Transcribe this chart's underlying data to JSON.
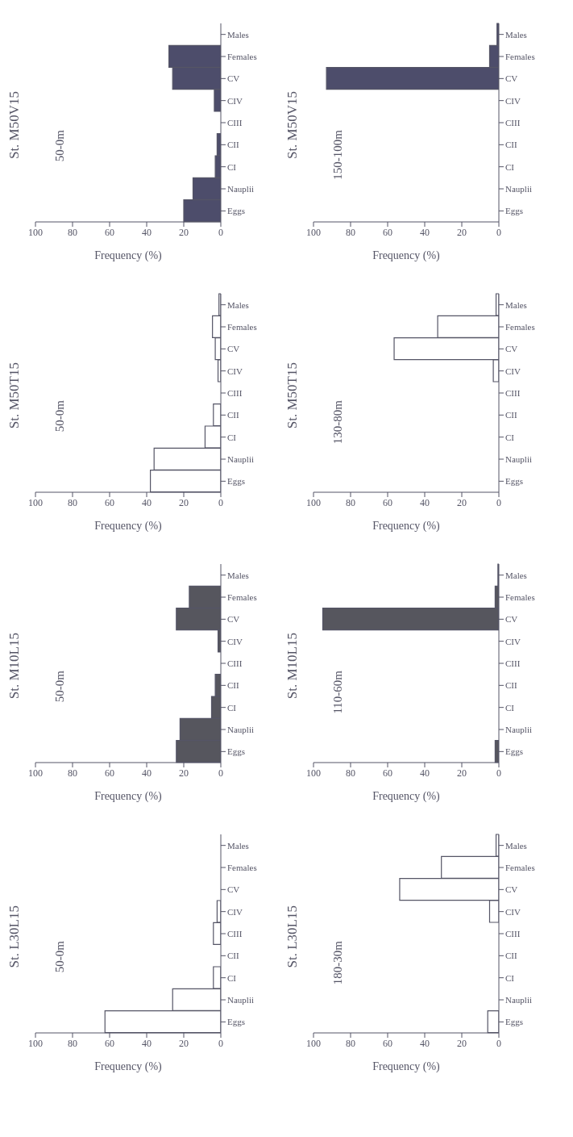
{
  "chart_data": [
    {
      "type": "bar",
      "orientation": "horizontal",
      "title": "St. M50V15",
      "annotations": [
        "50-0m"
      ],
      "xlabel": "Frequency (%)",
      "categories": [
        "Males",
        "Females",
        "CV",
        "CIV",
        "CIII",
        "CII",
        "CI",
        "Nauplii",
        "Eggs"
      ],
      "values": [
        0,
        28,
        26,
        3.5,
        0,
        2,
        3,
        15,
        20
      ],
      "color": "#4d4d6b",
      "xlim": [
        100,
        0
      ],
      "xticks": [
        100,
        80,
        60,
        40,
        20,
        0
      ],
      "grid": false
    },
    {
      "type": "bar",
      "orientation": "horizontal",
      "title": "St. M50V15",
      "annotations": [
        "150-100m"
      ],
      "xlabel": "Frequency (%)",
      "categories": [
        "Males",
        "Females",
        "CV",
        "CIV",
        "CIII",
        "CII",
        "CI",
        "Nauplii",
        "Eggs"
      ],
      "values": [
        1,
        5,
        93,
        0,
        0,
        0,
        0,
        0,
        0
      ],
      "color": "#4d4d6b",
      "xlim": [
        100,
        0
      ],
      "xticks": [
        100,
        80,
        60,
        40,
        20,
        0
      ],
      "grid": false
    },
    {
      "type": "bar",
      "orientation": "horizontal",
      "title": "St. M50T15",
      "annotations": [
        "50-0m"
      ],
      "xlabel": "Frequency (%)",
      "categories": [
        "Males",
        "Females",
        "CV",
        "CIV",
        "CIII",
        "CII",
        "CI",
        "Nauplii",
        "Eggs"
      ],
      "values": [
        1,
        4.5,
        3,
        1.5,
        null,
        4,
        8.5,
        36,
        38
      ],
      "color": "#ffffff",
      "xlim": [
        100,
        0
      ],
      "xticks": [
        100,
        80,
        60,
        40,
        20,
        0
      ],
      "grid": false
    },
    {
      "type": "bar",
      "orientation": "horizontal",
      "title": "St. M50T15",
      "annotations": [
        "130-80m"
      ],
      "xlabel": "Frequency (%)",
      "categories": [
        "Males",
        "Females",
        "CV",
        "CIV",
        "CIII",
        "CII",
        "CI",
        "Nauplii",
        "Eggs"
      ],
      "values": [
        1.5,
        33,
        56.5,
        3,
        0,
        0,
        0,
        0,
        0
      ],
      "color": "#ffffff",
      "xlim": [
        100,
        0
      ],
      "xticks": [
        100,
        80,
        60,
        40,
        20,
        0
      ],
      "grid": false
    },
    {
      "type": "bar",
      "orientation": "horizontal",
      "title": "St. M10L15",
      "annotations": [
        "50-0m"
      ],
      "xlabel": "Frequency (%)",
      "categories": [
        "Males",
        "Females",
        "CV",
        "CIV",
        "CIII",
        "CII",
        "CI",
        "Nauplii",
        "Eggs"
      ],
      "values": [
        0,
        17,
        24,
        1.5,
        0,
        3,
        5,
        22,
        24
      ],
      "color": "#56565e",
      "xlim": [
        100,
        0
      ],
      "xticks": [
        100,
        80,
        60,
        40,
        20,
        0
      ],
      "grid": false
    },
    {
      "type": "bar",
      "orientation": "horizontal",
      "title": "St. M10L15",
      "annotations": [
        "110-60m"
      ],
      "xlabel": "Frequency (%)",
      "categories": [
        "Males",
        "Females",
        "CV",
        "CIV",
        "CIII",
        "CII",
        "CI",
        "Nauplii",
        "Eggs"
      ],
      "values": [
        0.5,
        2,
        95,
        0,
        0,
        0,
        0,
        0,
        2
      ],
      "color": "#56565e",
      "xlim": [
        100,
        0
      ],
      "xticks": [
        100,
        80,
        60,
        40,
        20,
        0
      ],
      "grid": false
    },
    {
      "type": "bar",
      "orientation": "horizontal",
      "title": "St. L30L15",
      "annotations": [
        "50-0m"
      ],
      "xlabel": "Frequency (%)",
      "categories": [
        "Males",
        "Females",
        "CV",
        "CIV",
        "CIII",
        "CII",
        "CI",
        "Nauplii",
        "Eggs"
      ],
      "values": [
        0,
        0,
        null,
        2,
        4,
        0,
        4,
        26,
        62.5
      ],
      "color": "#ffffff",
      "xlim": [
        100,
        0
      ],
      "xticks": [
        100,
        80,
        60,
        40,
        20,
        0
      ],
      "grid": false
    },
    {
      "type": "bar",
      "orientation": "horizontal",
      "title": "St. L30L15",
      "annotations": [
        "180-30m"
      ],
      "xlabel": "Frequency (%)",
      "categories": [
        "Males",
        "Females",
        "CV",
        "CIV",
        "CIII",
        "CII",
        "CI",
        "Nauplii",
        "Eggs"
      ],
      "values": [
        1.5,
        31,
        53.5,
        5,
        0,
        0,
        0,
        null,
        6
      ],
      "color": "#ffffff",
      "xlim": [
        100,
        0
      ],
      "xticks": [
        100,
        80,
        60,
        40,
        20,
        0
      ],
      "grid": false
    }
  ]
}
